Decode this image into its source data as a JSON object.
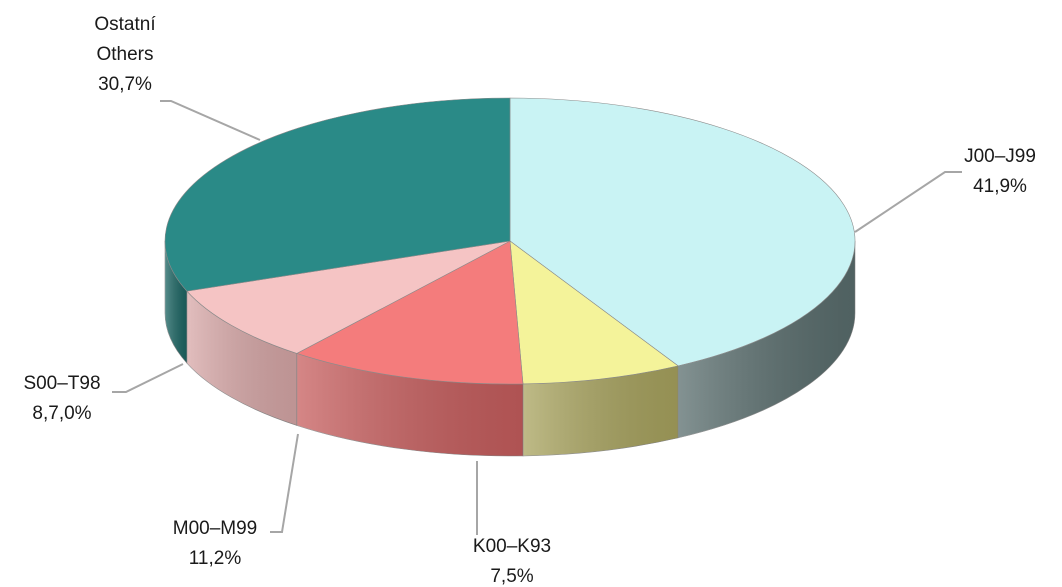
{
  "chart_data": {
    "type": "pie",
    "style": "3d",
    "slices": [
      {
        "label": "J00–J99",
        "value": 41.9,
        "value_text": "41,9%",
        "color": "#c9f3f4",
        "side_color": "#5a6e6e"
      },
      {
        "label": "K00–K93",
        "value": 7.5,
        "value_text": "7,5%",
        "color": "#f4f39a",
        "side_color": "#a9a45f"
      },
      {
        "label": "M00–M99",
        "value": 11.2,
        "value_text": "11,2%",
        "color": "#f47c7c",
        "side_color": "#c75e5e"
      },
      {
        "label": "S00–T98",
        "value": 8.7,
        "value_text": "8,7,0%",
        "color": "#f5c4c4",
        "side_color": "#d8a8a8"
      },
      {
        "label_lines": [
          "Ostatní",
          "Others"
        ],
        "value": 30.7,
        "value_text": "30,7%",
        "color": "#2a8a87",
        "side_color": "#1d6664"
      }
    ],
    "legend": "none",
    "title": ""
  }
}
